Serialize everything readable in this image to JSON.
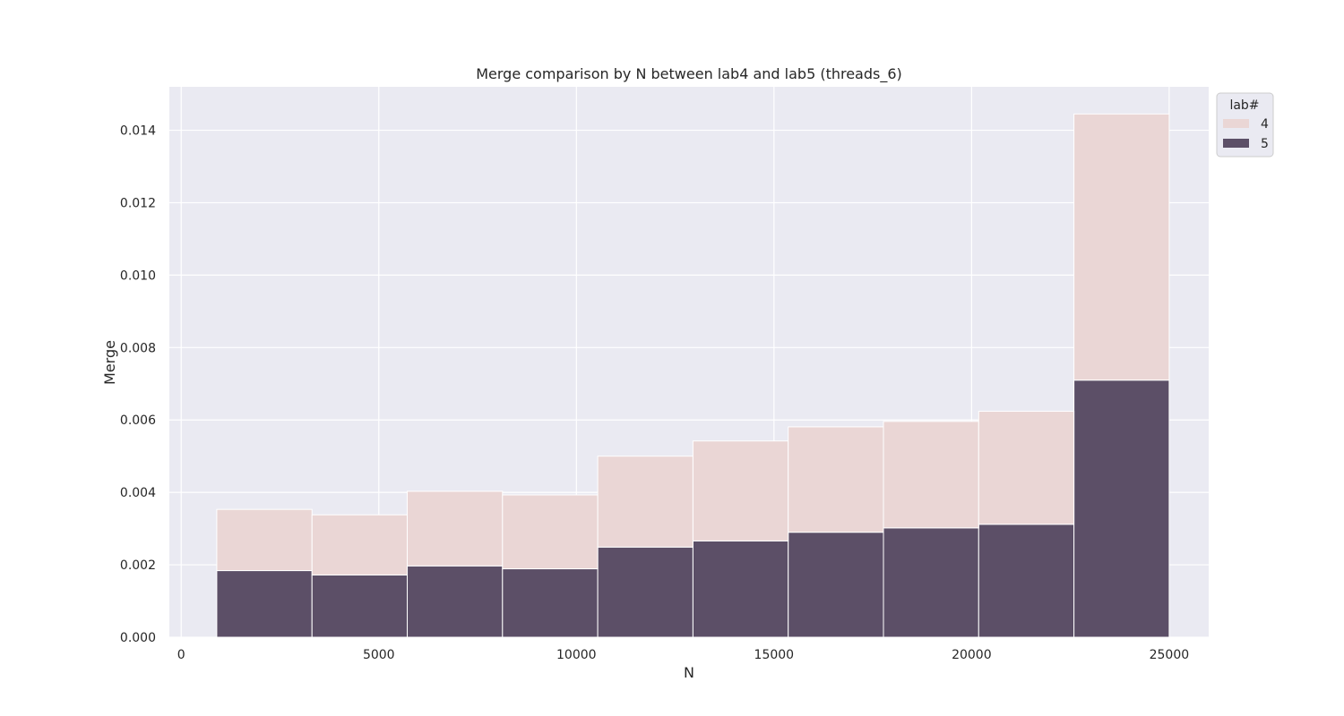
{
  "chart_data": {
    "type": "bar",
    "stacked": true,
    "title": "Merge comparison by N between lab4 and lab5 (threads_6)",
    "xlabel": "N",
    "ylabel": "Merge",
    "xlim": [
      -300,
      26000
    ],
    "ylim": [
      0,
      0.0152
    ],
    "xticks": [
      0,
      5000,
      10000,
      15000,
      20000,
      25000
    ],
    "xtick_labels": [
      "0",
      "5000",
      "10000",
      "15000",
      "20000",
      "25000"
    ],
    "yticks": [
      0,
      0.002,
      0.004,
      0.006,
      0.008,
      0.01,
      0.012,
      0.014
    ],
    "ytick_labels": [
      "0.000",
      "0.002",
      "0.004",
      "0.006",
      "0.008",
      "0.010",
      "0.012",
      "0.014"
    ],
    "grid": true,
    "bin_edges": [
      900,
      3310,
      5720,
      8130,
      10540,
      12950,
      15360,
      17770,
      20180,
      22590,
      25000
    ],
    "series": [
      {
        "name": "5",
        "color": "#5c4f67",
        "values": [
          0.00184,
          0.00172,
          0.00197,
          0.00189,
          0.00249,
          0.00266,
          0.0029,
          0.00302,
          0.00312,
          0.0071
        ]
      },
      {
        "name": "4",
        "color": "#ead6d5",
        "values": [
          0.00169,
          0.00166,
          0.00206,
          0.00204,
          0.00251,
          0.00276,
          0.00291,
          0.00294,
          0.00312,
          0.00735
        ]
      }
    ],
    "legend": {
      "title": "lab#",
      "placement": "outside top-right",
      "entries": [
        {
          "label": "4",
          "color": "#ead6d5"
        },
        {
          "label": "5",
          "color": "#5c4f67"
        }
      ]
    },
    "background_color": "#eaeaf2"
  }
}
